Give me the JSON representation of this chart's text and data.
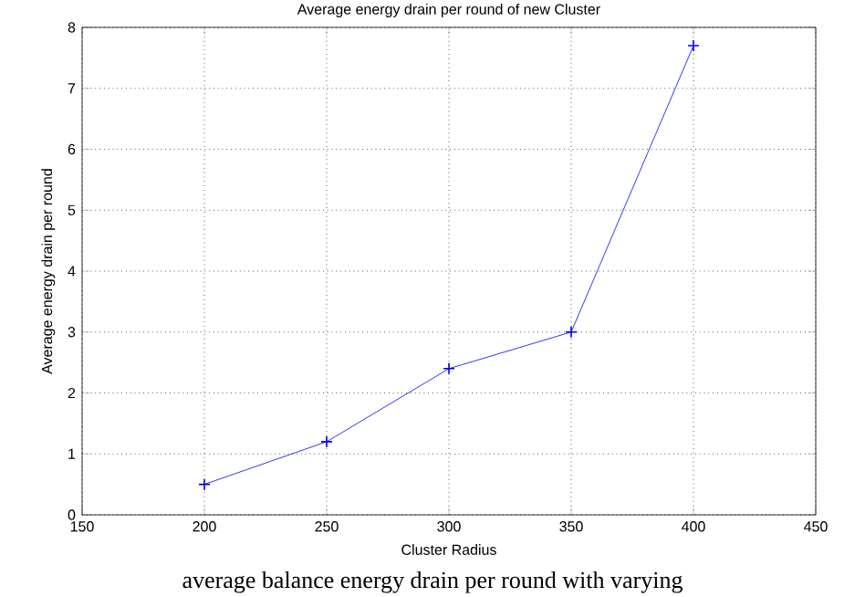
{
  "chart_data": {
    "type": "line",
    "title": "Average energy drain per round of new Cluster",
    "xlabel": "Cluster Radius",
    "ylabel": "Average energy drain per round",
    "x": [
      200,
      250,
      300,
      350,
      400
    ],
    "series": [
      {
        "color": "#0000ff",
        "values": [
          0.5,
          1.2,
          2.4,
          3.0,
          7.7
        ]
      }
    ],
    "xlim": [
      150,
      450
    ],
    "xticks": [
      150,
      200,
      250,
      300,
      350,
      400,
      450
    ],
    "ylim": [
      0,
      8
    ],
    "yticks": [
      0,
      1,
      2,
      3,
      4,
      5,
      6,
      7,
      8
    ],
    "grid": true,
    "marker": "cross",
    "line_style": "solid",
    "annotations": [
      "average balance energy drain per round with varying"
    ]
  }
}
